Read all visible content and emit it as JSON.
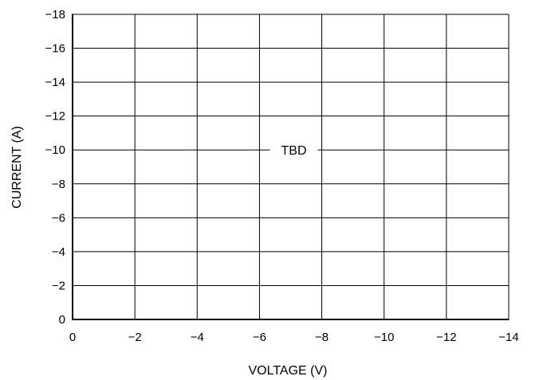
{
  "chart_data": {
    "type": "line",
    "xlabel": "VOLTAGE (V)",
    "ylabel": "CURRENT (A)",
    "xlim": [
      0,
      -14
    ],
    "ylim": [
      0,
      -18
    ],
    "x_ticks": [
      0,
      -2,
      -4,
      -6,
      -8,
      -10,
      -12,
      -14
    ],
    "y_ticks": [
      0,
      -2,
      -4,
      -6,
      -8,
      -10,
      -12,
      -14,
      -16,
      -18
    ],
    "x_tick_labels": [
      "0",
      "−2",
      "−4",
      "−6",
      "−8",
      "−10",
      "−12",
      "−14"
    ],
    "y_tick_labels": [
      "0",
      "−2",
      "−4",
      "−6",
      "−8",
      "−10",
      "−12",
      "−14",
      "−16",
      "−18"
    ],
    "grid": true,
    "series": [],
    "annotations": [
      {
        "text": "TBD",
        "x": -7,
        "y": -10
      }
    ]
  }
}
